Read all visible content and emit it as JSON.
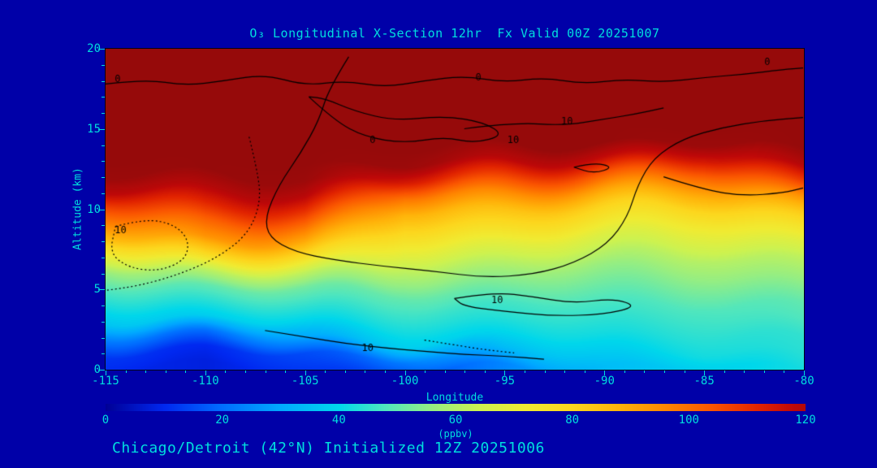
{
  "window": {
    "background_color": "#0000A8",
    "text_color": "#00DEDE"
  },
  "chart_data": {
    "type": "heatmap",
    "title": "O₃ Longitudinal X-Section 12hr  Fx Valid 00Z 20251007",
    "caption": "Chicago/Detroit (42°N) Initialized 12Z 20251006",
    "xlabel": "Longitude",
    "ylabel": "Altitude (km)",
    "colorbar_label": "(ppbv)",
    "colorbar_range": [
      0,
      120
    ],
    "colorbar_ticks": [
      0,
      20,
      40,
      60,
      80,
      100,
      120
    ],
    "xlim": [
      -115,
      -80
    ],
    "ylim": [
      0,
      20
    ],
    "x_ticks": [
      -115,
      -110,
      -105,
      -100,
      -95,
      -90,
      -85,
      -80
    ],
    "y_ticks": [
      0,
      5,
      10,
      15,
      20
    ],
    "x": [
      -115,
      -110,
      -105,
      -100,
      -95,
      -90,
      -85,
      -80
    ],
    "y": [
      0,
      1,
      2,
      3,
      4,
      5,
      6,
      7,
      8,
      9,
      10,
      11,
      12,
      13,
      14,
      15,
      16,
      17,
      18,
      19,
      20
    ],
    "values_ppbv_by_longitude": [
      [
        10,
        12,
        22,
        36,
        42,
        48,
        56,
        70,
        85,
        96,
        106,
        118,
        124,
        125,
        125,
        125,
        125,
        125,
        125,
        125,
        125
      ],
      [
        8,
        10,
        20,
        38,
        44,
        50,
        62,
        80,
        94,
        102,
        112,
        120,
        125,
        125,
        125,
        125,
        125,
        125,
        125,
        125,
        125
      ],
      [
        12,
        15,
        30,
        40,
        46,
        52,
        63,
        78,
        90,
        100,
        110,
        119,
        124,
        125,
        125,
        125,
        125,
        125,
        125,
        125,
        125
      ],
      [
        14,
        22,
        38,
        42,
        46,
        50,
        57,
        64,
        72,
        80,
        88,
        99,
        114,
        124,
        125,
        125,
        125,
        125,
        125,
        125,
        125
      ],
      [
        24,
        34,
        40,
        44,
        47,
        52,
        57,
        63,
        70,
        78,
        85,
        95,
        107,
        119,
        125,
        125,
        125,
        125,
        125,
        125,
        125
      ],
      [
        34,
        38,
        42,
        45,
        48,
        52,
        56,
        62,
        68,
        75,
        82,
        92,
        104,
        117,
        125,
        125,
        125,
        125,
        125,
        125,
        125
      ],
      [
        38,
        42,
        44,
        46,
        48,
        52,
        56,
        60,
        66,
        72,
        80,
        90,
        101,
        114,
        124,
        125,
        125,
        125,
        125,
        125,
        125
      ],
      [
        42,
        44,
        45,
        48,
        50,
        54,
        58,
        62,
        68,
        75,
        83,
        94,
        108,
        120,
        125,
        125,
        125,
        125,
        125,
        125,
        125
      ]
    ],
    "colormap_stops": [
      [
        0,
        0,
        0,
        150
      ],
      [
        10,
        0,
        40,
        240
      ],
      [
        20,
        0,
        110,
        255
      ],
      [
        30,
        0,
        170,
        255
      ],
      [
        40,
        0,
        215,
        235
      ],
      [
        48,
        80,
        230,
        190
      ],
      [
        56,
        150,
        238,
        130
      ],
      [
        64,
        205,
        242,
        80
      ],
      [
        72,
        240,
        235,
        50
      ],
      [
        80,
        252,
        215,
        30
      ],
      [
        88,
        255,
        180,
        10
      ],
      [
        96,
        255,
        135,
        0
      ],
      [
        104,
        250,
        85,
        0
      ],
      [
        112,
        225,
        35,
        0
      ],
      [
        118,
        190,
        8,
        8
      ],
      [
        125,
        150,
        10,
        10
      ]
    ],
    "contours": [
      {
        "style": "solid",
        "labels": [
          {
            "text": "0",
            "pos": [
              -114.3,
              18.1
            ]
          },
          {
            "text": "0",
            "pos": [
              -96.2,
              18.2
            ]
          },
          {
            "text": "0",
            "pos": [
              -81.7,
              19.2
            ]
          }
        ],
        "points": [
          [
            -115,
            17.8
          ],
          [
            -113,
            18.1
          ],
          [
            -111,
            17.7
          ],
          [
            -109,
            18.0
          ],
          [
            -107,
            18.4
          ],
          [
            -105,
            17.7
          ],
          [
            -103,
            18.0
          ],
          [
            -101,
            17.6
          ],
          [
            -99,
            18.0
          ],
          [
            -97,
            18.3
          ],
          [
            -95,
            17.9
          ],
          [
            -93,
            18.2
          ],
          [
            -91,
            17.8
          ],
          [
            -89,
            18.1
          ],
          [
            -87,
            17.9
          ],
          [
            -85,
            18.2
          ],
          [
            -83,
            18.4
          ],
          [
            -81,
            18.7
          ],
          [
            -80,
            18.8
          ]
        ]
      },
      {
        "style": "solid",
        "labels": [
          {
            "text": "0",
            "pos": [
              -101.5,
              14.3
            ]
          }
        ],
        "points": [
          [
            -104.8,
            17.0
          ],
          [
            -103.5,
            15.5
          ],
          [
            -102,
            14.5
          ],
          [
            -100,
            14.1
          ],
          [
            -98,
            14.5
          ],
          [
            -96.5,
            14.1
          ],
          [
            -95,
            14.6
          ],
          [
            -96,
            15.4
          ],
          [
            -98,
            15.8
          ],
          [
            -100.5,
            15.5
          ],
          [
            -102.5,
            16.1
          ],
          [
            -104,
            16.9
          ],
          [
            -104.8,
            17.0
          ]
        ]
      },
      {
        "style": "solid",
        "labels": [
          {
            "text": "10",
            "pos": [
              -94.6,
              14.3
            ]
          }
        ],
        "points": [
          [
            -102.8,
            19.5
          ],
          [
            -103.8,
            17.5
          ],
          [
            -104.3,
            15.5
          ],
          [
            -105.2,
            13.5
          ],
          [
            -106.3,
            11.5
          ],
          [
            -107.0,
            9.5
          ],
          [
            -106.8,
            8.2
          ],
          [
            -105.5,
            7.3
          ],
          [
            -103.5,
            6.8
          ],
          [
            -101,
            6.4
          ],
          [
            -98.5,
            6.1
          ],
          [
            -96,
            5.7
          ],
          [
            -93.5,
            5.9
          ],
          [
            -91.5,
            6.6
          ],
          [
            -89.8,
            7.8
          ],
          [
            -88.8,
            9.5
          ],
          [
            -88.3,
            11.5
          ],
          [
            -87.5,
            13.2
          ],
          [
            -86,
            14.4
          ],
          [
            -84,
            15.1
          ],
          [
            -82,
            15.5
          ],
          [
            -80,
            15.7
          ]
        ]
      },
      {
        "style": "solid",
        "labels": [
          {
            "text": "10",
            "pos": [
              -91.9,
              15.5
            ]
          }
        ],
        "points": [
          [
            -97,
            15.0
          ],
          [
            -94.5,
            15.4
          ],
          [
            -92,
            15.2
          ],
          [
            -90,
            15.6
          ],
          [
            -88.5,
            15.9
          ],
          [
            -87,
            16.3
          ]
        ]
      },
      {
        "style": "solid",
        "labels": [
          {
            "text": "10",
            "pos": [
              -95.4,
              4.3
            ]
          }
        ],
        "points": [
          [
            -97.5,
            4.4
          ],
          [
            -95.5,
            4.8
          ],
          [
            -93.5,
            4.5
          ],
          [
            -91.5,
            4.1
          ],
          [
            -89.5,
            4.4
          ],
          [
            -88.3,
            3.9
          ],
          [
            -90,
            3.4
          ],
          [
            -92.5,
            3.3
          ],
          [
            -95,
            3.6
          ],
          [
            -97,
            3.9
          ],
          [
            -97.5,
            4.4
          ]
        ]
      },
      {
        "style": "solid",
        "labels": [
          {
            "text": "10",
            "pos": [
              -101.9,
              1.3
            ]
          }
        ],
        "points": [
          [
            -107,
            2.4
          ],
          [
            -105,
            2.0
          ],
          [
            -103,
            1.6
          ],
          [
            -101,
            1.3
          ],
          [
            -99,
            1.1
          ],
          [
            -97,
            0.9
          ],
          [
            -95,
            0.8
          ],
          [
            -93,
            0.6
          ]
        ]
      },
      {
        "style": "dotted",
        "labels": [],
        "points": [
          [
            -99,
            1.8
          ],
          [
            -97.5,
            1.5
          ],
          [
            -96,
            1.2
          ],
          [
            -94.5,
            1.0
          ]
        ]
      },
      {
        "style": "dotted",
        "labels": [
          {
            "text": "10",
            "pos": [
              -114.3,
              8.7
            ]
          }
        ],
        "points": [
          [
            -114.5,
            8.9
          ],
          [
            -113,
            9.4
          ],
          [
            -111.5,
            9.0
          ],
          [
            -110.8,
            8.0
          ],
          [
            -111,
            6.8
          ],
          [
            -112.3,
            6.1
          ],
          [
            -113.8,
            6.3
          ],
          [
            -114.8,
            7.2
          ],
          [
            -114.5,
            8.9
          ]
        ]
      },
      {
        "style": "dotted",
        "labels": [],
        "points": [
          [
            -107.8,
            14.5
          ],
          [
            -107.4,
            12.5
          ],
          [
            -107.2,
            10.5
          ],
          [
            -107.8,
            8.5
          ],
          [
            -109.3,
            7.0
          ],
          [
            -111.3,
            5.9
          ],
          [
            -113.3,
            5.2
          ],
          [
            -115,
            4.9
          ]
        ]
      },
      {
        "style": "solid",
        "labels": [],
        "points": [
          [
            -87,
            12.0
          ],
          [
            -85,
            11.2
          ],
          [
            -83,
            10.8
          ],
          [
            -81,
            11.0
          ],
          [
            -80,
            11.3
          ]
        ]
      },
      {
        "style": "solid",
        "labels": [],
        "points": [
          [
            -91.5,
            12.6
          ],
          [
            -90.5,
            12.9
          ],
          [
            -89.5,
            12.6
          ],
          [
            -90.5,
            12.2
          ],
          [
            -91.5,
            12.6
          ]
        ]
      }
    ]
  }
}
